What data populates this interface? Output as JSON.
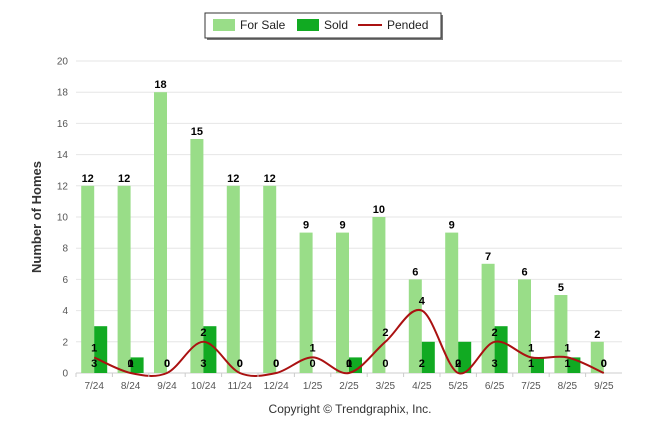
{
  "chart_data": {
    "type": "bar",
    "title": "",
    "xlabel": "",
    "ylabel": "Number of Homes",
    "ylim": [
      0,
      20
    ],
    "yticks": [
      0,
      2,
      4,
      6,
      8,
      10,
      12,
      14,
      16,
      18,
      20
    ],
    "grid": true,
    "legend_position": "top-center",
    "categories": [
      "7/24",
      "8/24",
      "9/24",
      "10/24",
      "11/24",
      "12/24",
      "1/25",
      "2/25",
      "3/25",
      "4/25",
      "5/25",
      "6/25",
      "7/25",
      "8/25",
      "9/25"
    ],
    "series": [
      {
        "name": "For Sale",
        "kind": "bar",
        "color": "#99dd88",
        "values": [
          12,
          12,
          18,
          15,
          12,
          12,
          9,
          9,
          10,
          6,
          9,
          7,
          6,
          5,
          2
        ]
      },
      {
        "name": "Sold",
        "kind": "bar",
        "color": "#11aa22",
        "values": [
          3,
          1,
          0,
          3,
          0,
          0,
          0,
          1,
          0,
          2,
          2,
          3,
          1,
          1,
          0
        ]
      },
      {
        "name": "Pended",
        "kind": "line",
        "color": "#aa1111",
        "values": [
          1,
          0,
          0,
          2,
          0,
          0,
          1,
          0,
          2,
          4,
          0,
          2,
          1,
          1,
          0
        ]
      }
    ],
    "credit": "Copyright © Trendgraphix, Inc."
  }
}
